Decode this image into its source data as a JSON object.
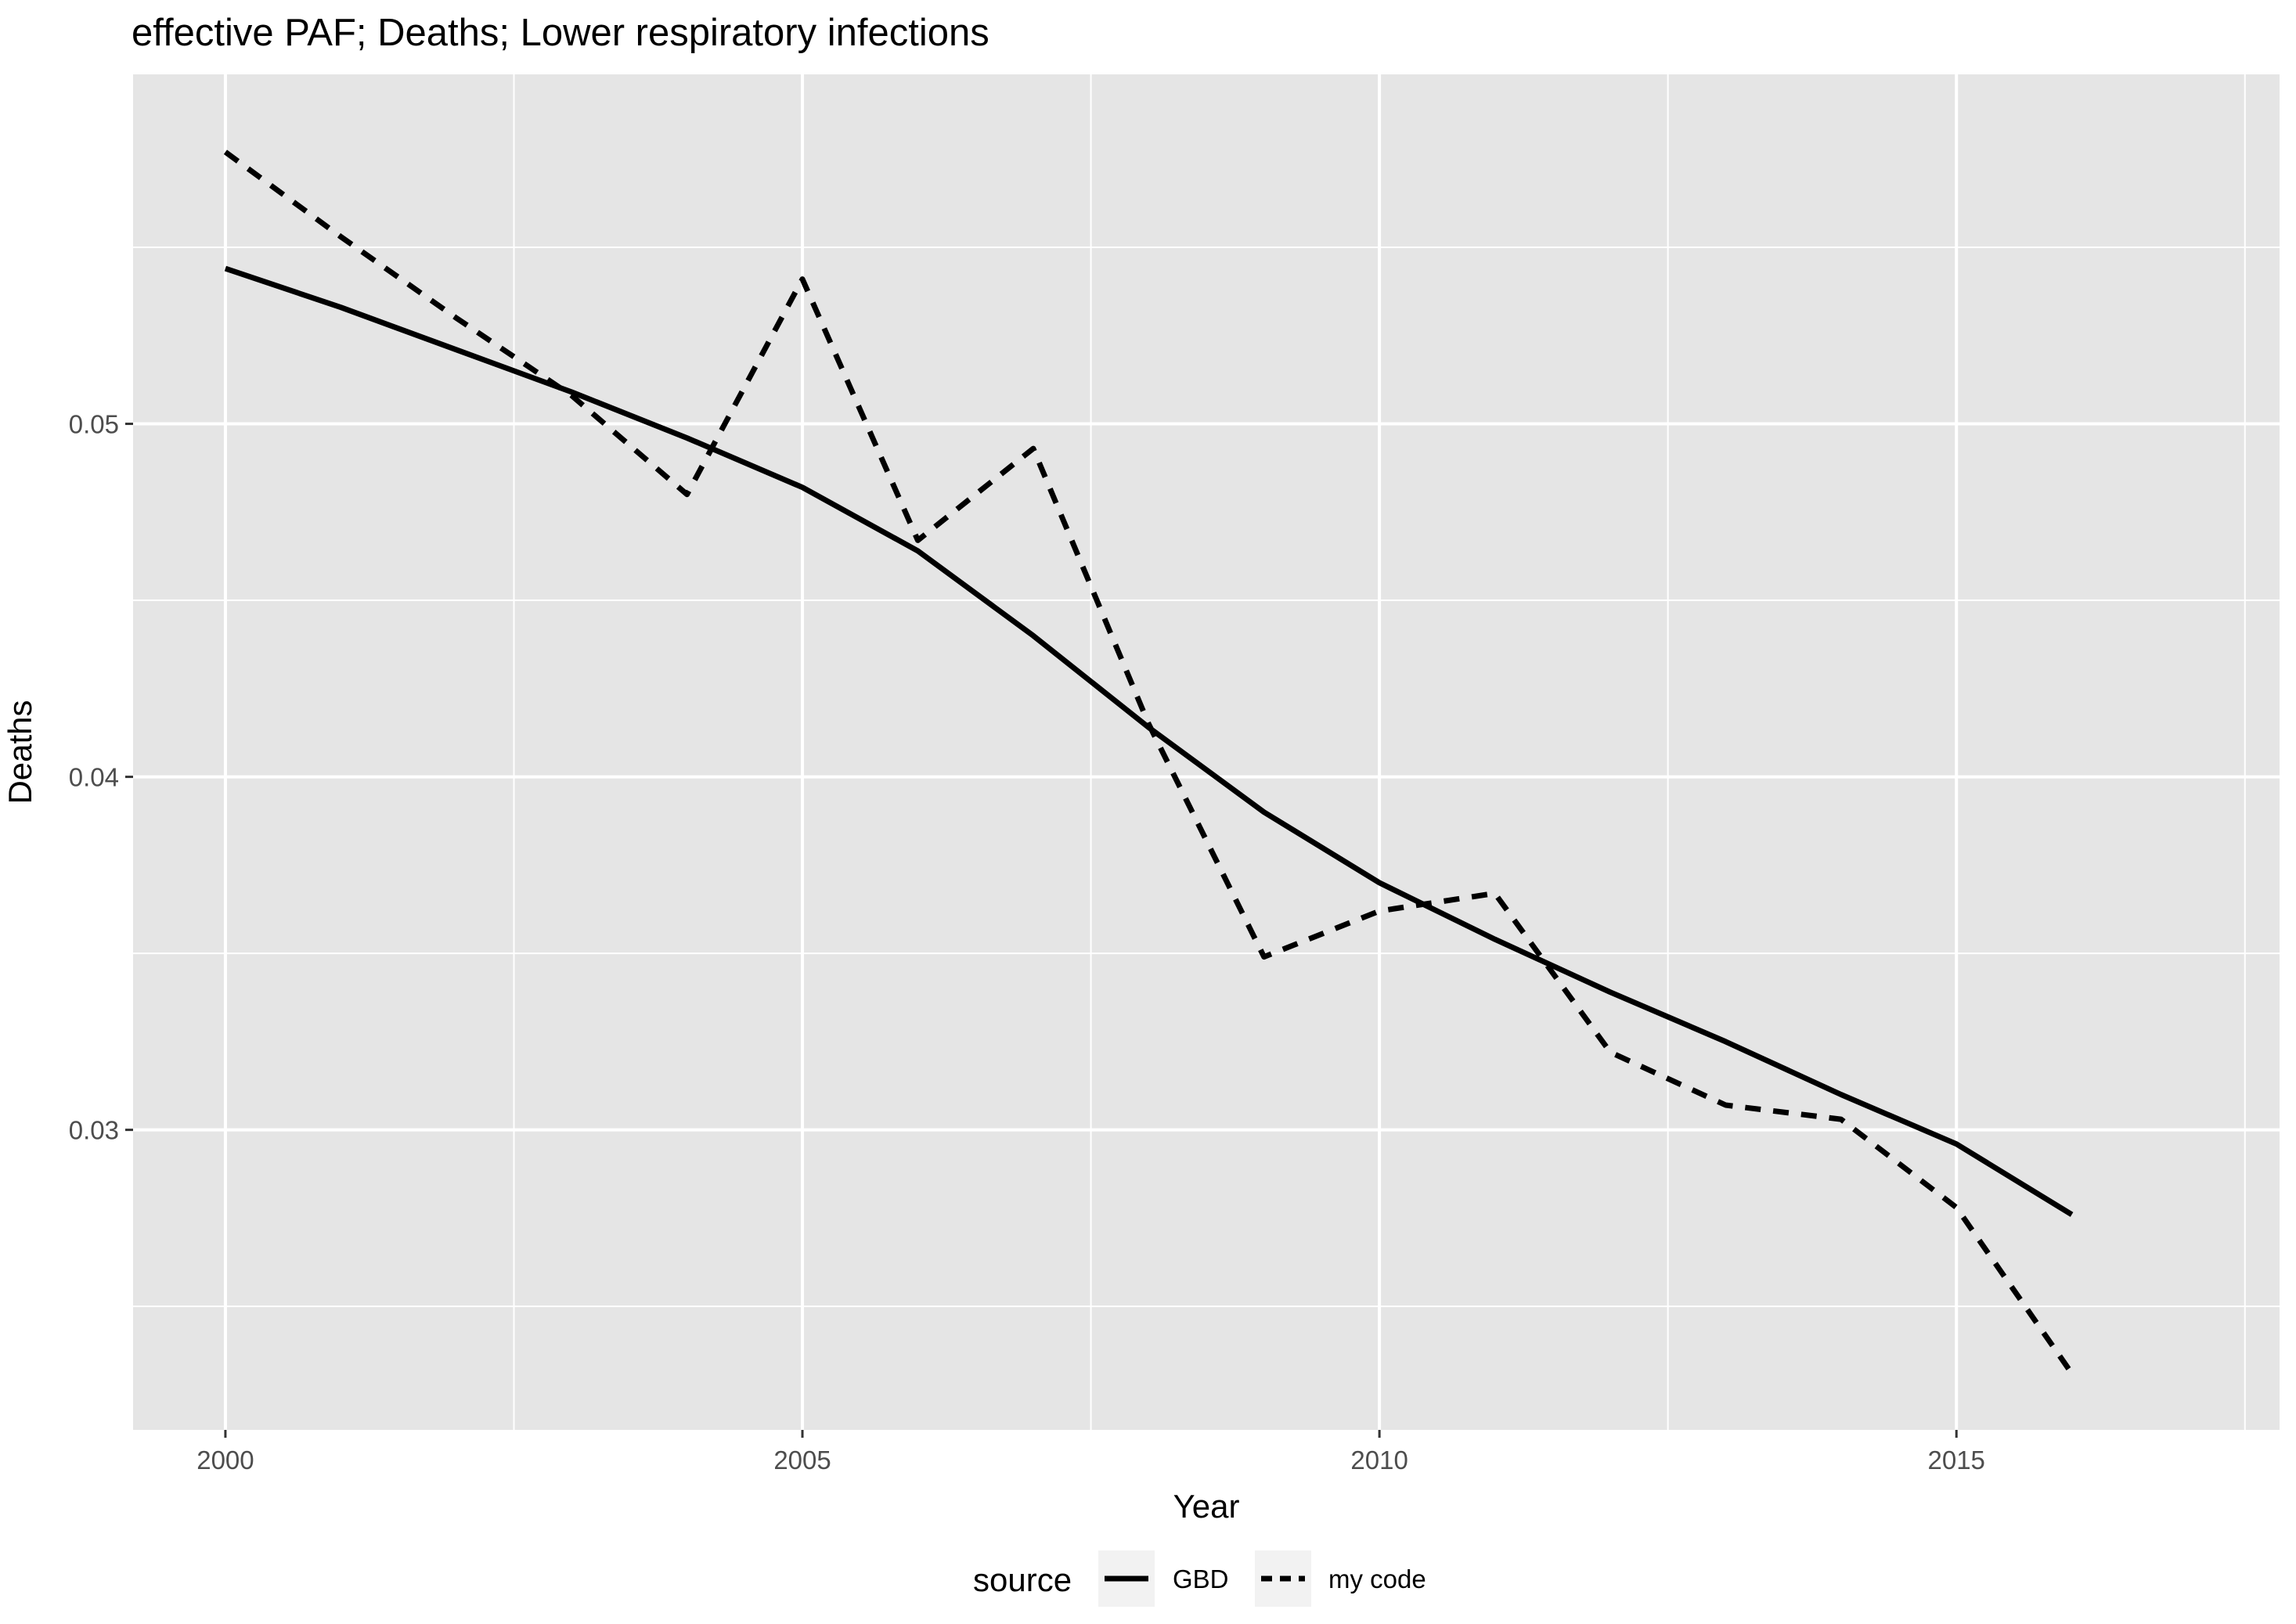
{
  "chart_data": {
    "type": "line",
    "title": "effective PAF; Deaths; Lower respiratory infections",
    "xlabel": "Year",
    "ylabel": "Deaths",
    "xlim": [
      1999.2,
      2017.8
    ],
    "ylim": [
      0.0215,
      0.0599
    ],
    "x_ticks": [
      2000,
      2005,
      2010,
      2015
    ],
    "x_minor": [
      2002.5,
      2007.5,
      2012.5,
      2017.5
    ],
    "y_ticks": [
      0.03,
      0.04,
      0.05
    ],
    "y_tick_labels": [
      "0.03",
      "0.04",
      "0.05"
    ],
    "y_minor": [
      0.025,
      0.035,
      0.045,
      0.055
    ],
    "x": [
      2000,
      2001,
      2002,
      2003,
      2004,
      2005,
      2006,
      2007,
      2008,
      2009,
      2010,
      2011,
      2012,
      2013,
      2014,
      2015,
      2016
    ],
    "series": [
      {
        "name": "GBD",
        "linetype": "solid",
        "values": [
          0.0544,
          0.0533,
          0.0521,
          0.0509,
          0.0496,
          0.0482,
          0.0464,
          0.044,
          0.0414,
          0.039,
          0.037,
          0.0354,
          0.0339,
          0.0325,
          0.031,
          0.0296,
          0.0276
        ]
      },
      {
        "name": "my code",
        "linetype": "dashed",
        "values": [
          0.0577,
          0.0553,
          0.053,
          0.0508,
          0.048,
          0.0541,
          0.0467,
          0.0493,
          0.0415,
          0.0349,
          0.0362,
          0.0367,
          0.0322,
          0.0307,
          0.0303,
          0.0278,
          0.0231
        ]
      }
    ],
    "legend": {
      "title": "source",
      "placement": "bottom"
    },
    "grid": true,
    "colors": {
      "panel_background": "#e5e5e5",
      "grid": "#ffffff",
      "line": "#000000",
      "legend_key": "#f2f2f2"
    }
  }
}
